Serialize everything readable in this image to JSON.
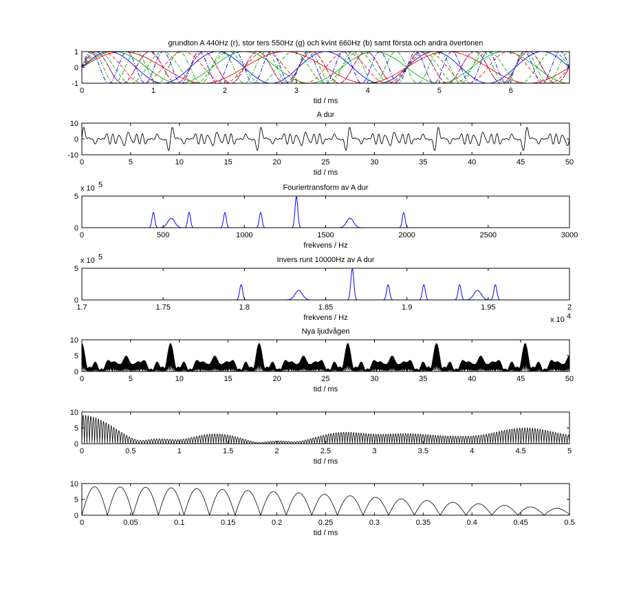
{
  "figure": {
    "background": "#ffffff",
    "colors": {
      "red": "#ff0000",
      "green": "#00b000",
      "blue": "#0000ff",
      "black": "#000000"
    }
  },
  "chart_data": [
    {
      "type": "line",
      "title": "grundton A 440Hz (r), stor ters 550Hz (g) och kvint 660Hz (b) samt första och andra övertonen",
      "xlabel": "tid / ms",
      "ylabel": "",
      "xlim": [
        0,
        6.82
      ],
      "ylim": [
        -1,
        1
      ],
      "xticks": [
        0,
        1,
        2,
        3,
        4,
        5,
        6
      ],
      "yticks": [
        -1,
        0,
        1
      ],
      "series": [
        {
          "color": "#ff0000",
          "style": "solid",
          "freq_hz": 440,
          "amplitude": 1
        },
        {
          "color": "#00b000",
          "style": "solid",
          "freq_hz": 550,
          "amplitude": 1
        },
        {
          "color": "#0000ff",
          "style": "solid",
          "freq_hz": 660,
          "amplitude": 1
        },
        {
          "color": "#ff0000",
          "style": "dashed",
          "freq_hz": 880,
          "amplitude": 1
        },
        {
          "color": "#00b000",
          "style": "dashed",
          "freq_hz": 1100,
          "amplitude": 1
        },
        {
          "color": "#0000ff",
          "style": "dashed",
          "freq_hz": 1320,
          "amplitude": 1
        },
        {
          "color": "#ff0000",
          "style": "dashdot",
          "freq_hz": 1320,
          "amplitude": 1
        },
        {
          "color": "#00b000",
          "style": "dashdot",
          "freq_hz": 1650,
          "amplitude": 1
        },
        {
          "color": "#0000ff",
          "style": "dashdot",
          "freq_hz": 1980,
          "amplitude": 1
        }
      ]
    },
    {
      "type": "line",
      "title": "A dur",
      "xlabel": "tid / ms",
      "ylabel": "",
      "xlim": [
        0,
        50
      ],
      "ylim": [
        -10,
        10
      ],
      "xticks": [
        0,
        5,
        10,
        15,
        20,
        25,
        30,
        35,
        40,
        45,
        50
      ],
      "yticks": [
        -10,
        0,
        10
      ],
      "signal": "sum of sin(2*pi*f*t) for f in frequencies_hz",
      "frequencies_hz": [
        440,
        550,
        660,
        880,
        1100,
        1320,
        1320,
        1650,
        1980
      ],
      "series": [
        {
          "color": "#000000"
        }
      ]
    },
    {
      "type": "line",
      "title": "Fouriertransform av A dur",
      "xlabel": "frekvens / Hz",
      "ylabel": "",
      "y_exponent_label": "x 10",
      "y_exponent": "5",
      "xlim": [
        0,
        3000
      ],
      "ylim": [
        0,
        5
      ],
      "xticks": [
        0,
        500,
        1000,
        1500,
        2000,
        2500,
        3000
      ],
      "yticks": [
        0,
        5
      ],
      "series": [
        {
          "color": "#0000ff"
        }
      ],
      "peaks": [
        {
          "x": 440,
          "y": 2.4,
          "width": 12
        },
        {
          "x": 550,
          "y": 1.5,
          "width": 30
        },
        {
          "x": 660,
          "y": 2.4,
          "width": 12
        },
        {
          "x": 880,
          "y": 2.4,
          "width": 12
        },
        {
          "x": 1100,
          "y": 2.4,
          "width": 12
        },
        {
          "x": 1320,
          "y": 4.9,
          "width": 12
        },
        {
          "x": 1650,
          "y": 1.5,
          "width": 30
        },
        {
          "x": 1980,
          "y": 2.4,
          "width": 12
        }
      ]
    },
    {
      "type": "line",
      "title": "Invers runt 10000Hz av A dur",
      "xlabel": "frekvens / Hz",
      "ylabel": "",
      "y_exponent_label": "x 10",
      "y_exponent": "5",
      "x_exponent_label": "x 10",
      "x_exponent": "4",
      "xlim": [
        1.7,
        2.0
      ],
      "ylim": [
        0,
        5
      ],
      "xticks": [
        1.7,
        1.75,
        1.8,
        1.85,
        1.9,
        1.95,
        2.0
      ],
      "xticklabels": [
        "1.7",
        "1.75",
        "1.8",
        "1.85",
        "1.9",
        "1.95",
        "2"
      ],
      "yticks": [
        0,
        5
      ],
      "series": [
        {
          "color": "#0000ff"
        }
      ],
      "peaks": [
        {
          "x": 1.798,
          "y": 2.4,
          "width": 0.0013
        },
        {
          "x": 1.8334,
          "y": 1.5,
          "width": 0.0032
        },
        {
          "x": 1.8664,
          "y": 4.9,
          "width": 0.0013
        },
        {
          "x": 1.8884,
          "y": 2.4,
          "width": 0.0013
        },
        {
          "x": 1.9104,
          "y": 2.4,
          "width": 0.0013
        },
        {
          "x": 1.9324,
          "y": 2.4,
          "width": 0.0013
        },
        {
          "x": 1.9434,
          "y": 1.5,
          "width": 0.0032
        },
        {
          "x": 1.9544,
          "y": 2.4,
          "width": 0.0013
        }
      ]
    },
    {
      "type": "line",
      "title": "Nya ljudvågen",
      "xlabel": "tid / ms",
      "ylabel": "",
      "xlim": [
        0,
        50
      ],
      "ylim": [
        0,
        10
      ],
      "xticks": [
        0,
        5,
        10,
        15,
        20,
        25,
        30,
        35,
        40,
        45,
        50
      ],
      "yticks": [
        0,
        5,
        10
      ],
      "signal": "|sum of sin(2*pi*(f+18000)*t)| (frequencies shifted up by 18000 Hz)",
      "frequencies_hz": [
        440,
        550,
        660,
        880,
        1100,
        1320,
        1320,
        1650,
        1980
      ],
      "frequency_shift_hz": 18000,
      "series": [
        {
          "color": "#000000"
        }
      ]
    },
    {
      "type": "line",
      "title": "",
      "xlabel": "tid / ms",
      "ylabel": "",
      "xlim": [
        0,
        5
      ],
      "ylim": [
        0,
        10
      ],
      "xticks": [
        0,
        0.5,
        1,
        1.5,
        2,
        2.5,
        3,
        3.5,
        4,
        4.5,
        5
      ],
      "xticklabels": [
        "0",
        "0.5",
        "1",
        "1.5",
        "2",
        "2.5",
        "3",
        "3.5",
        "4",
        "4.5",
        "5"
      ],
      "yticks": [
        0,
        5,
        10
      ],
      "series": [
        {
          "color": "#000000"
        }
      ]
    },
    {
      "type": "line",
      "title": "",
      "xlabel": "tid / ms",
      "ylabel": "",
      "xlim": [
        0,
        0.5
      ],
      "ylim": [
        0,
        10
      ],
      "xticks": [
        0,
        0.05,
        0.1,
        0.15,
        0.2,
        0.25,
        0.3,
        0.35,
        0.4,
        0.45,
        0.5
      ],
      "xticklabels": [
        "0",
        "0.05",
        "0.1",
        "0.15",
        "0.2",
        "0.25",
        "0.3",
        "0.35",
        "0.4",
        "0.45",
        "0.5"
      ],
      "yticks": [
        0,
        5,
        10
      ],
      "series": [
        {
          "color": "#000000"
        }
      ]
    }
  ]
}
